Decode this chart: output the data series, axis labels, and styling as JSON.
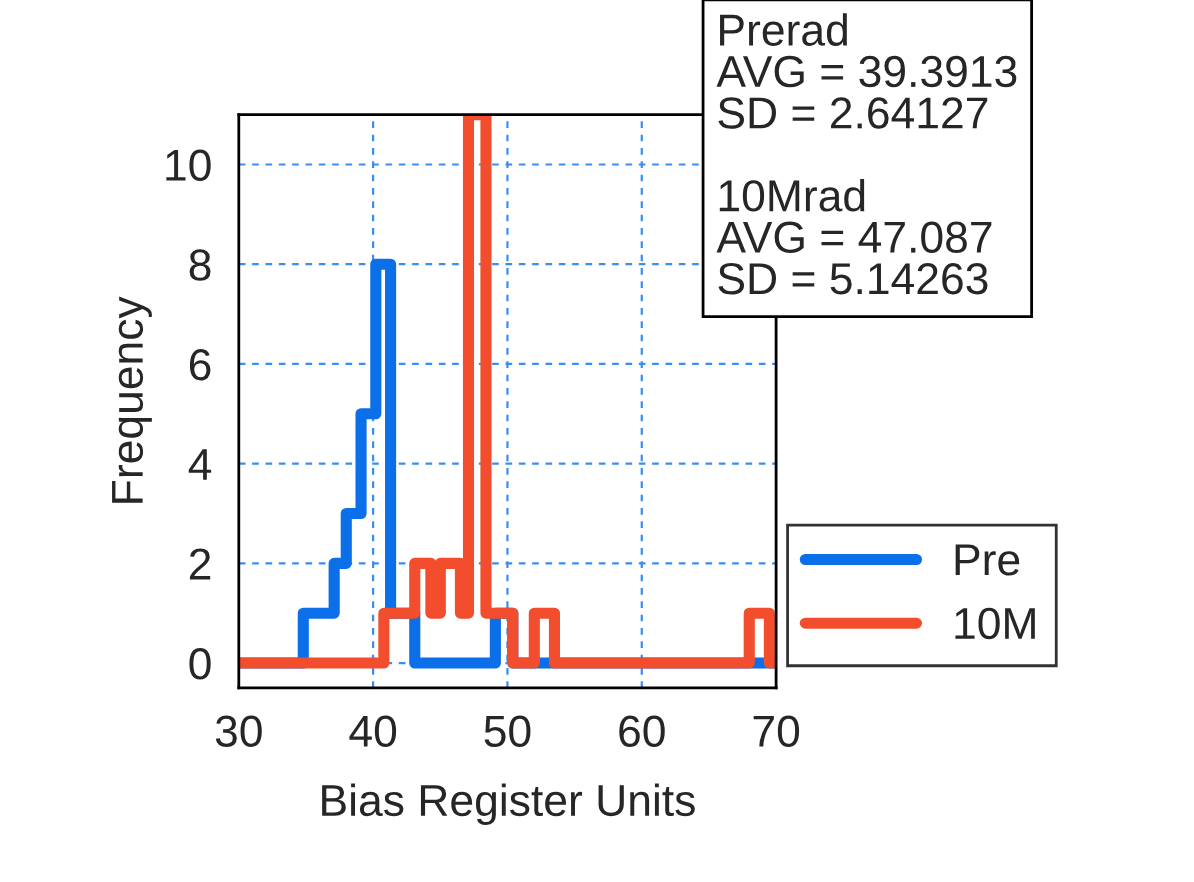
{
  "chart_data": {
    "type": "step",
    "xlabel": "Bias Register Units",
    "ylabel": "Frequency",
    "series": [
      {
        "name": "Pre",
        "color": "#0a6fe8",
        "x": [
          30,
          34.8,
          37.1,
          38.0,
          39.1,
          40.2,
          41.3,
          43.1,
          49.1,
          50.4,
          70
        ],
        "values": [
          0,
          1,
          2,
          3,
          5,
          8,
          1,
          0,
          1,
          0,
          0
        ]
      },
      {
        "name": "10M",
        "color": "#f24e2e",
        "x": [
          30,
          40.8,
          43.1,
          44.3,
          45.0,
          46.5,
          47.1,
          48.4,
          50.4,
          52.0,
          53.5,
          68.0,
          69.5,
          70
        ],
        "values": [
          0,
          1,
          2,
          1,
          2,
          1,
          11,
          1,
          0,
          1,
          0,
          1,
          0,
          0
        ]
      }
    ],
    "xlim": [
      30,
      70
    ],
    "xticks": [
      30,
      40,
      50,
      60,
      70
    ],
    "ylim": [
      -0.5,
      11
    ],
    "yticks": [
      0,
      2,
      4,
      6,
      8,
      10
    ],
    "grid": true,
    "legend": "bottom right",
    "annotations": [
      "Prerad\nAVG = 39.3913\nSD = 2.64127\n\n10Mrad\nAVG = 47.087\nSD = 5.14263"
    ]
  }
}
